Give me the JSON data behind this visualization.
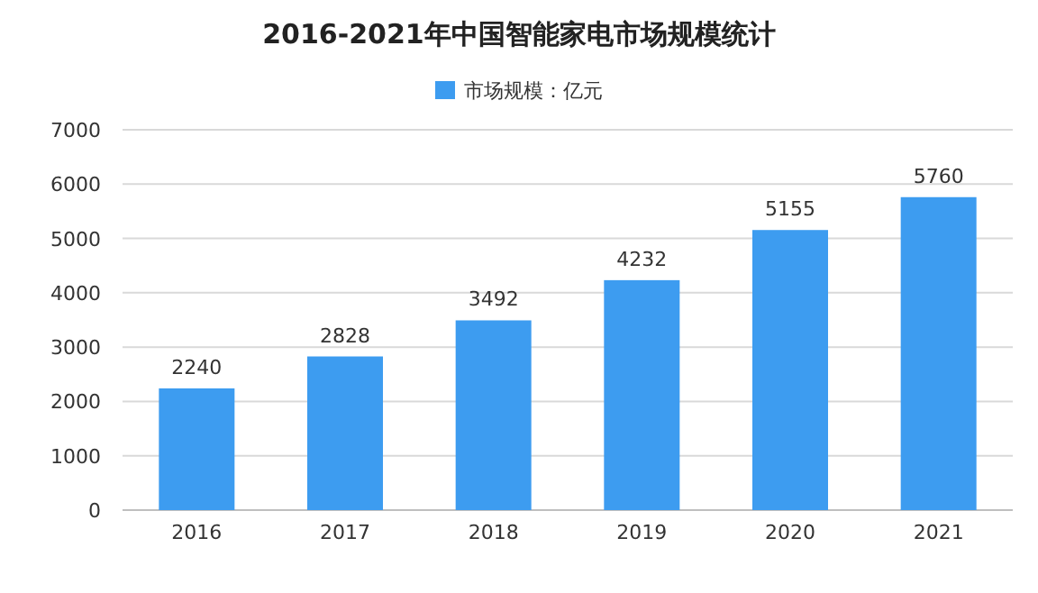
{
  "chart_data": {
    "type": "bar",
    "title": "2016-2021年中国智能家电市场规模统计",
    "categories": [
      "2016",
      "2017",
      "2018",
      "2019",
      "2020",
      "2021"
    ],
    "series": [
      {
        "name": "市场规模：亿元",
        "color": "#3d9cf0",
        "values": [
          2240,
          2828,
          3492,
          4232,
          5155,
          5760
        ]
      }
    ],
    "ylim": [
      0,
      7000
    ],
    "yticks": [
      0,
      1000,
      2000,
      3000,
      4000,
      5000,
      6000,
      7000
    ],
    "grid": "y",
    "legend": "top",
    "data_labels": true
  }
}
